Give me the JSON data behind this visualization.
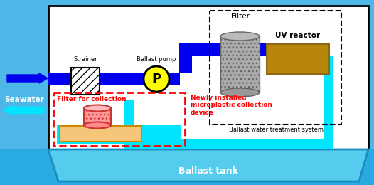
{
  "fig_w": 5.26,
  "fig_h": 2.6,
  "dpi": 100,
  "bg_seawater": "#4DB8E8",
  "white": "#FFFFFF",
  "blue_pipe": "#0000EE",
  "cyan_pipe": "#00E5FF",
  "uv_color": "#B8860B",
  "gray_filter": "#999999",
  "gray_filter_light": "#BBBBBB",
  "yellow": "#FFFF00",
  "red": "#FF0000",
  "orange_tray": "#F5C57A",
  "pink_filter": "#FF8080",
  "seawater_label": "Seawater",
  "ballast_tank_label": "Ballast tank",
  "filter_label": "Filter",
  "uv_label": "UV reactor",
  "bwts_label": "Ballast water treatment system",
  "strainer_label": "Strainer",
  "pump_label": "Ballast pump",
  "collection_label": "Filter for collection",
  "new_device_label": "Newly installed\nmicroplastic collection\ndevice"
}
